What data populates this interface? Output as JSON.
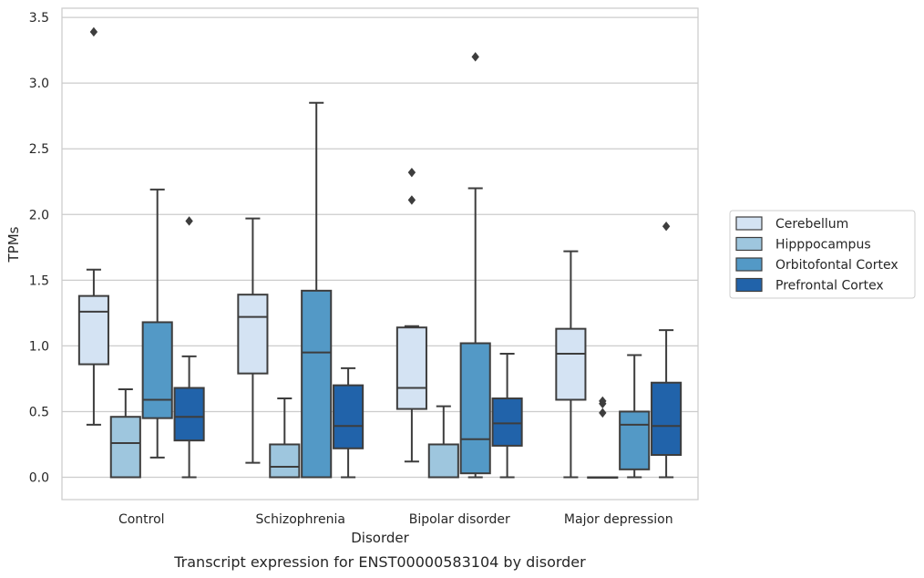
{
  "chart_data": {
    "type": "box",
    "categories": [
      "Control",
      "Schizophrenia",
      "Bipolar disorder",
      "Major depression"
    ],
    "xlabel": "Disorder",
    "ylabel": "TPMs",
    "caption": "Transcript expression for ENST00000583104 by disorder",
    "ylim": [
      -0.17,
      3.57
    ],
    "yticks": [
      "0.0",
      "0.5",
      "1.0",
      "1.5",
      "2.0",
      "2.5",
      "3.0",
      "3.5"
    ],
    "grid": "horizontal",
    "legend_position": "right",
    "series": [
      {
        "name": "Cerebellum",
        "color": "#d4e3f3",
        "boxes": [
          {
            "whisker_low": 0.4,
            "q1": 0.86,
            "median": 1.26,
            "q3": 1.38,
            "whisker_high": 1.58,
            "outliers": [
              3.39
            ]
          },
          {
            "whisker_low": 0.11,
            "q1": 0.79,
            "median": 1.22,
            "q3": 1.39,
            "whisker_high": 1.97,
            "outliers": []
          },
          {
            "whisker_low": 0.12,
            "q1": 0.52,
            "median": 0.68,
            "q3": 1.14,
            "whisker_high": 1.15,
            "outliers": [
              2.11,
              2.32
            ]
          },
          {
            "whisker_low": 0.0,
            "q1": 0.59,
            "median": 0.94,
            "q3": 1.13,
            "whisker_high": 1.72,
            "outliers": []
          }
        ]
      },
      {
        "name": "Hipppocampus",
        "color": "#9ec6de",
        "boxes": [
          {
            "whisker_low": 0.0,
            "q1": 0.0,
            "median": 0.26,
            "q3": 0.46,
            "whisker_high": 0.67,
            "outliers": []
          },
          {
            "whisker_low": 0.0,
            "q1": 0.0,
            "median": 0.08,
            "q3": 0.25,
            "whisker_high": 0.6,
            "outliers": []
          },
          {
            "whisker_low": 0.0,
            "q1": 0.0,
            "median": 0.0,
            "q3": 0.25,
            "whisker_high": 0.54,
            "outliers": []
          },
          {
            "whisker_low": 0.0,
            "q1": 0.0,
            "median": 0.0,
            "q3": 0.0,
            "whisker_high": 0.0,
            "outliers": [
              0.49,
              0.56,
              0.58
            ]
          }
        ]
      },
      {
        "name": "Orbitofontal Cortex",
        "color": "#5399c6",
        "boxes": [
          {
            "whisker_low": 0.15,
            "q1": 0.45,
            "median": 0.59,
            "q3": 1.18,
            "whisker_high": 2.19,
            "outliers": []
          },
          {
            "whisker_low": 0.0,
            "q1": 0.0,
            "median": 0.95,
            "q3": 1.42,
            "whisker_high": 2.85,
            "outliers": []
          },
          {
            "whisker_low": 0.0,
            "q1": 0.03,
            "median": 0.29,
            "q3": 1.02,
            "whisker_high": 2.2,
            "outliers": [
              3.2
            ]
          },
          {
            "whisker_low": 0.0,
            "q1": 0.06,
            "median": 0.4,
            "q3": 0.5,
            "whisker_high": 0.93,
            "outliers": []
          }
        ]
      },
      {
        "name": "Prefrontal Cortex",
        "color": "#2163aa",
        "boxes": [
          {
            "whisker_low": 0.0,
            "q1": 0.28,
            "median": 0.46,
            "q3": 0.68,
            "whisker_high": 0.92,
            "outliers": [
              1.95
            ]
          },
          {
            "whisker_low": 0.0,
            "q1": 0.22,
            "median": 0.39,
            "q3": 0.7,
            "whisker_high": 0.83,
            "outliers": []
          },
          {
            "whisker_low": 0.0,
            "q1": 0.24,
            "median": 0.41,
            "q3": 0.6,
            "whisker_high": 0.94,
            "outliers": []
          },
          {
            "whisker_low": 0.0,
            "q1": 0.17,
            "median": 0.39,
            "q3": 0.72,
            "whisker_high": 1.12,
            "outliers": [
              1.91
            ]
          }
        ]
      }
    ]
  }
}
